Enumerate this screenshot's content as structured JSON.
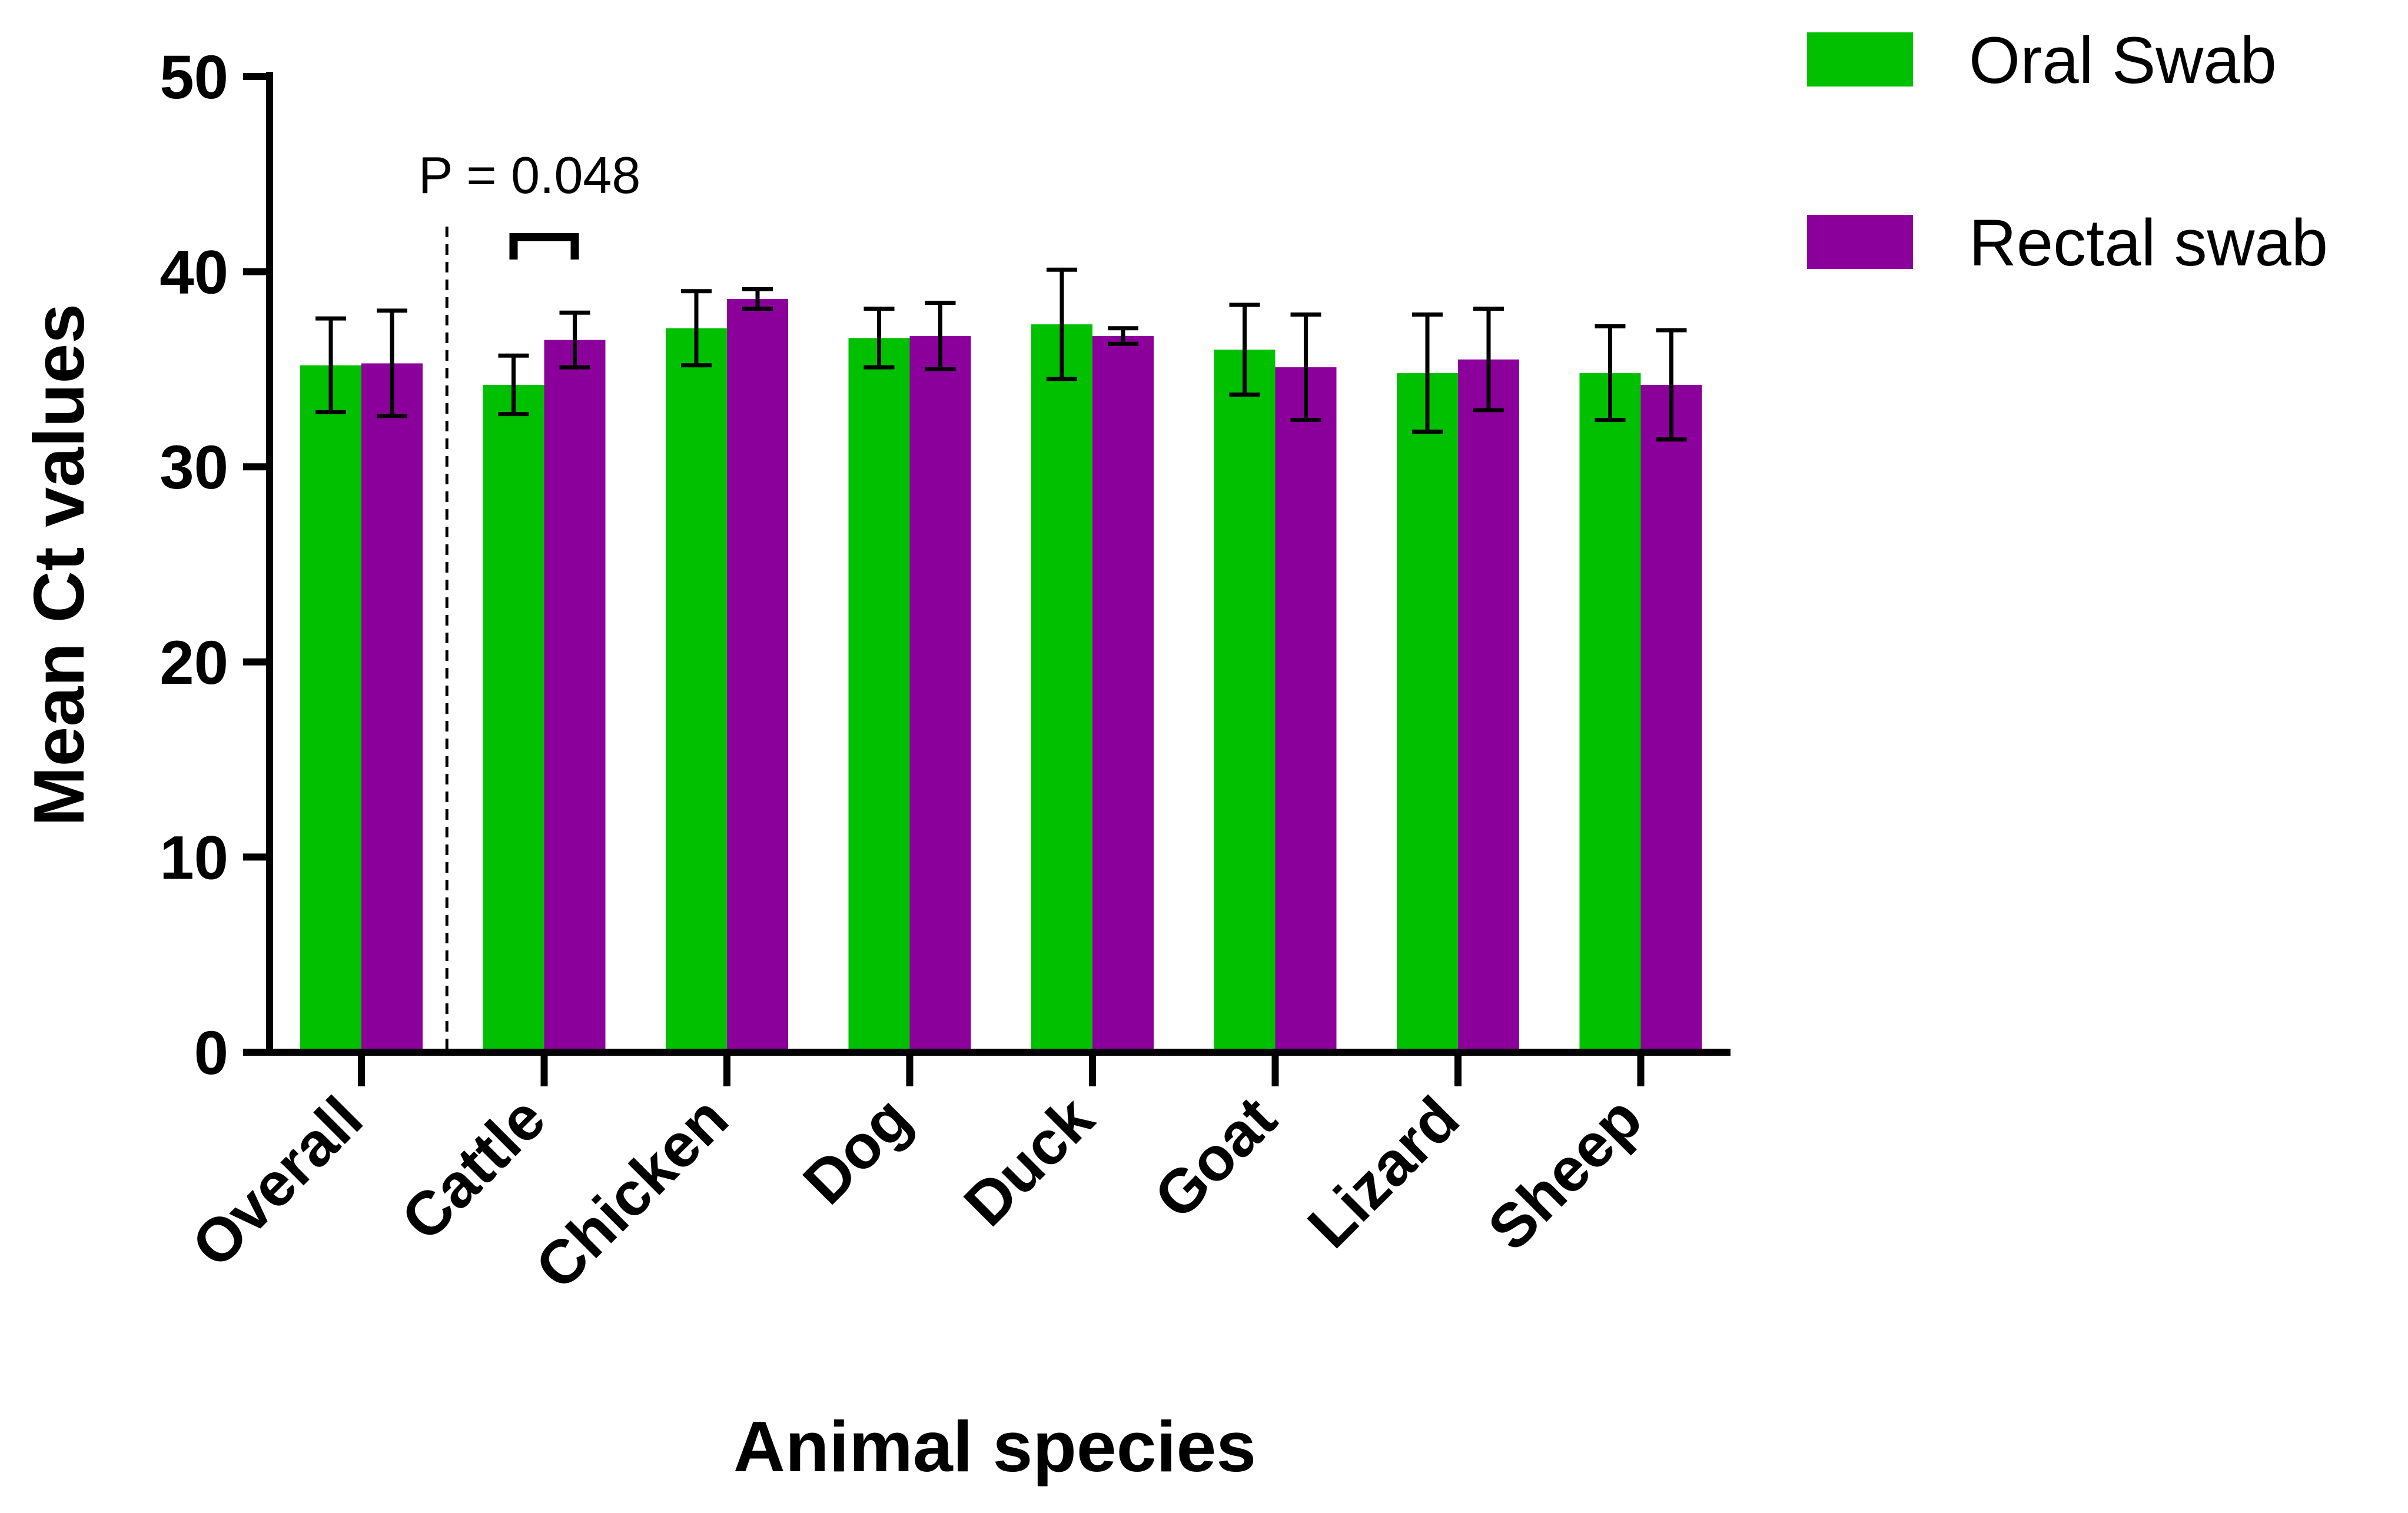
{
  "chart_data": {
    "type": "bar",
    "xlabel": "Animal species",
    "ylabel": "Mean Ct values",
    "ylim": [
      0,
      50
    ],
    "yticks": [
      0,
      10,
      20,
      30,
      40,
      50
    ],
    "categories": [
      "Overall",
      "Cattle",
      "Chicken",
      "Dog",
      "Duck",
      "Goat",
      "Lizard",
      "Sheep"
    ],
    "series": [
      {
        "name": "Oral Swab",
        "color": "#00C000",
        "values": [
          35.2,
          34.2,
          37.1,
          36.6,
          37.3,
          36.0,
          34.8,
          34.8
        ],
        "errors": [
          2.4,
          1.5,
          1.9,
          1.5,
          2.8,
          2.3,
          3.0,
          2.4
        ]
      },
      {
        "name": "Rectal swab",
        "color": "#8B009B",
        "values": [
          35.3,
          36.5,
          38.6,
          36.7,
          36.7,
          35.1,
          35.5,
          34.2
        ],
        "errors": [
          2.7,
          1.4,
          0.5,
          1.7,
          0.4,
          2.7,
          2.6,
          2.8
        ]
      }
    ],
    "annotation": {
      "text": "P = 0.048",
      "category": "Cattle"
    },
    "legend_position": "top-right",
    "grid": false
  }
}
